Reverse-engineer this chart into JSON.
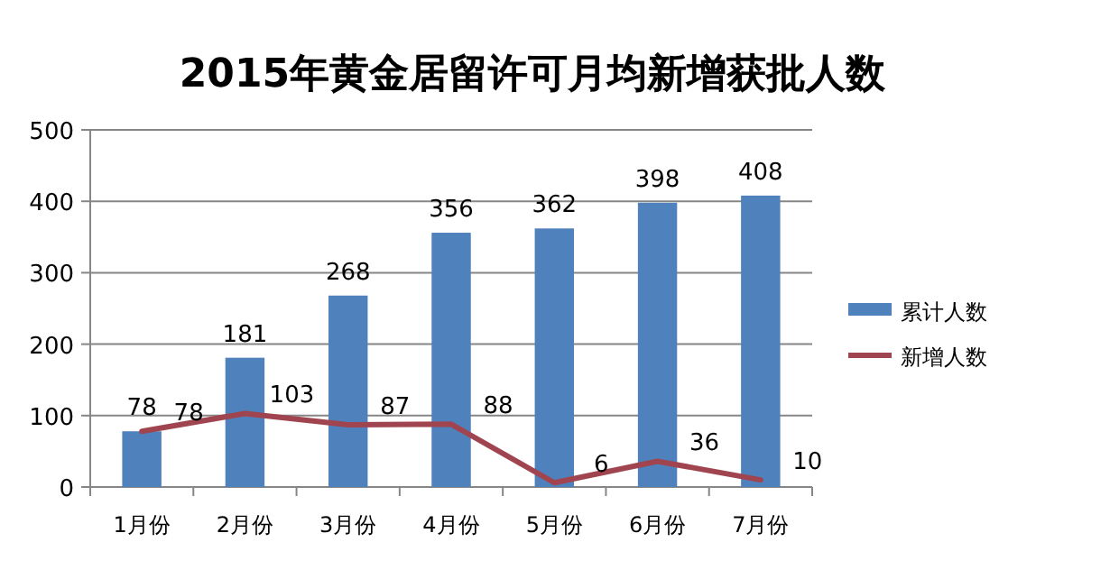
{
  "chart_data": {
    "type": "bar",
    "title": "2015年黄金居留许可月均新增获批人数",
    "categories": [
      "1月份",
      "2月份",
      "3月份",
      "4月份",
      "5月份",
      "6月份",
      "7月份"
    ],
    "series": [
      {
        "name": "累计人数",
        "color": "#4f81bd",
        "values": [
          78,
          181,
          268,
          356,
          362,
          398,
          408
        ]
      },
      {
        "name": "新增人数",
        "type": "line",
        "color": "#a0454f",
        "values": [
          78,
          103,
          87,
          88,
          6,
          36,
          10
        ]
      }
    ],
    "ylim": [
      0,
      500
    ],
    "yticks": [
      0,
      100,
      200,
      300,
      400,
      500
    ],
    "grid": "y",
    "legend": "right",
    "data_labels": true,
    "marker": "none",
    "line_style": "solid"
  }
}
